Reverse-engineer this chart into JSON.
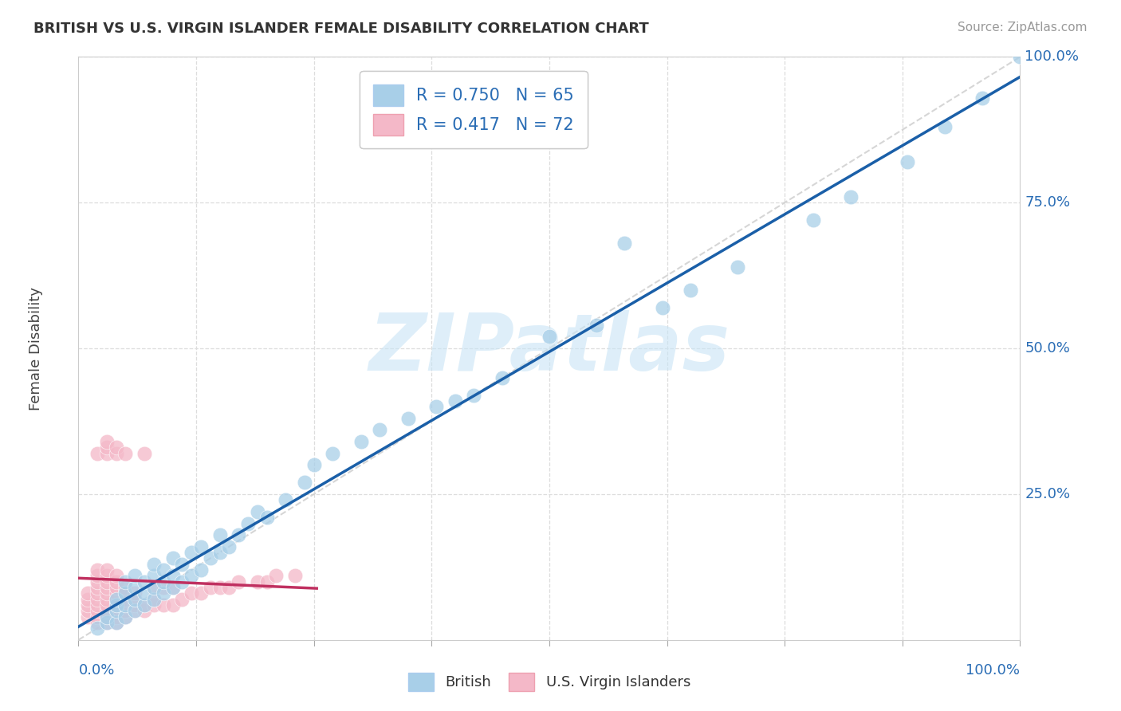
{
  "title": "BRITISH VS U.S. VIRGIN ISLANDER FEMALE DISABILITY CORRELATION CHART",
  "source": "Source: ZipAtlas.com",
  "ylabel": "Female Disability",
  "xlim": [
    0,
    1.0
  ],
  "ylim": [
    0,
    1.0
  ],
  "xticks": [
    0.0,
    0.125,
    0.25,
    0.375,
    0.5,
    0.625,
    0.75,
    0.875,
    1.0
  ],
  "yticks": [
    0.0,
    0.25,
    0.5,
    0.75,
    1.0
  ],
  "xtick_labels_bottom": [
    "0.0%",
    "",
    "",
    "",
    "",
    "",
    "",
    "",
    "100.0%"
  ],
  "ytick_labels_right": [
    "",
    "25.0%",
    "50.0%",
    "75.0%",
    "100.0%"
  ],
  "british_R": 0.75,
  "british_N": 65,
  "usvi_R": 0.417,
  "usvi_N": 72,
  "british_color": "#a8cfe8",
  "usvi_color": "#f4b8c8",
  "british_line_color": "#1a5fa8",
  "usvi_line_color": "#c03060",
  "ref_line_color": "#cccccc",
  "grid_color": "#dddddd",
  "bg_color": "#ffffff",
  "watermark": "ZIPatlas",
  "watermark_color": "#c8e4f5",
  "british_scatter_x": [
    0.02,
    0.03,
    0.03,
    0.04,
    0.04,
    0.04,
    0.04,
    0.05,
    0.05,
    0.05,
    0.05,
    0.06,
    0.06,
    0.06,
    0.06,
    0.07,
    0.07,
    0.07,
    0.08,
    0.08,
    0.08,
    0.08,
    0.09,
    0.09,
    0.09,
    0.1,
    0.1,
    0.1,
    0.11,
    0.11,
    0.12,
    0.12,
    0.13,
    0.13,
    0.14,
    0.15,
    0.15,
    0.16,
    0.17,
    0.18,
    0.19,
    0.2,
    0.22,
    0.24,
    0.25,
    0.27,
    0.3,
    0.32,
    0.35,
    0.38,
    0.4,
    0.42,
    0.45,
    0.5,
    0.55,
    0.58,
    0.62,
    0.65,
    0.7,
    0.78,
    0.82,
    0.88,
    0.92,
    0.96,
    1.0
  ],
  "british_scatter_y": [
    0.02,
    0.03,
    0.04,
    0.03,
    0.05,
    0.06,
    0.07,
    0.04,
    0.06,
    0.08,
    0.1,
    0.05,
    0.07,
    0.09,
    0.11,
    0.06,
    0.08,
    0.1,
    0.07,
    0.09,
    0.11,
    0.13,
    0.08,
    0.1,
    0.12,
    0.09,
    0.11,
    0.14,
    0.1,
    0.13,
    0.11,
    0.15,
    0.12,
    0.16,
    0.14,
    0.15,
    0.18,
    0.16,
    0.18,
    0.2,
    0.22,
    0.21,
    0.24,
    0.27,
    0.3,
    0.32,
    0.34,
    0.36,
    0.38,
    0.4,
    0.41,
    0.42,
    0.45,
    0.52,
    0.54,
    0.68,
    0.57,
    0.6,
    0.64,
    0.72,
    0.76,
    0.82,
    0.88,
    0.93,
    1.0
  ],
  "usvi_scatter_x": [
    0.01,
    0.01,
    0.01,
    0.01,
    0.01,
    0.02,
    0.02,
    0.02,
    0.02,
    0.02,
    0.02,
    0.02,
    0.02,
    0.02,
    0.02,
    0.02,
    0.03,
    0.03,
    0.03,
    0.03,
    0.03,
    0.03,
    0.03,
    0.03,
    0.03,
    0.03,
    0.03,
    0.03,
    0.03,
    0.04,
    0.04,
    0.04,
    0.04,
    0.04,
    0.04,
    0.04,
    0.04,
    0.04,
    0.04,
    0.04,
    0.05,
    0.05,
    0.05,
    0.05,
    0.05,
    0.05,
    0.05,
    0.06,
    0.06,
    0.06,
    0.06,
    0.07,
    0.07,
    0.07,
    0.08,
    0.08,
    0.08,
    0.09,
    0.09,
    0.1,
    0.1,
    0.11,
    0.12,
    0.13,
    0.14,
    0.15,
    0.16,
    0.17,
    0.19,
    0.2,
    0.21,
    0.23
  ],
  "usvi_scatter_y": [
    0.04,
    0.05,
    0.06,
    0.07,
    0.08,
    0.03,
    0.04,
    0.05,
    0.06,
    0.07,
    0.08,
    0.09,
    0.1,
    0.11,
    0.12,
    0.32,
    0.03,
    0.04,
    0.05,
    0.06,
    0.07,
    0.08,
    0.09,
    0.1,
    0.11,
    0.12,
    0.32,
    0.33,
    0.34,
    0.03,
    0.04,
    0.05,
    0.06,
    0.07,
    0.08,
    0.09,
    0.1,
    0.11,
    0.32,
    0.33,
    0.04,
    0.05,
    0.06,
    0.07,
    0.08,
    0.09,
    0.32,
    0.05,
    0.06,
    0.07,
    0.08,
    0.05,
    0.06,
    0.32,
    0.06,
    0.07,
    0.09,
    0.06,
    0.09,
    0.06,
    0.09,
    0.07,
    0.08,
    0.08,
    0.09,
    0.09,
    0.09,
    0.1,
    0.1,
    0.1,
    0.11,
    0.11
  ]
}
